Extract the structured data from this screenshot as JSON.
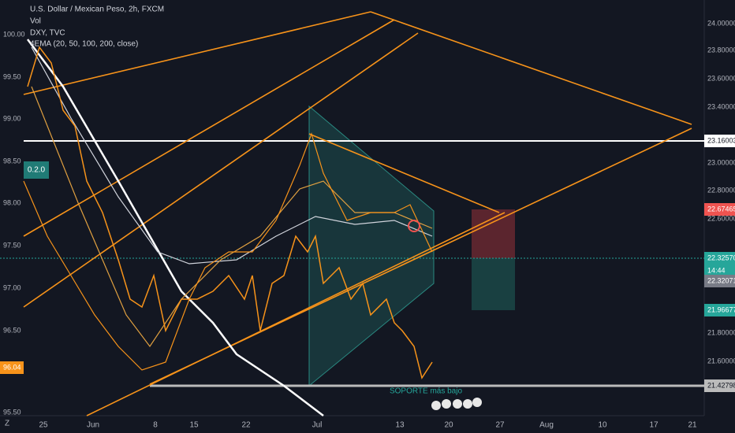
{
  "header": {
    "symbol": "U.S. Dollar / Mexican Peso, 2h, FXCM",
    "volume": "Vol",
    "compare": "DXY, TVC",
    "indicator": "4EMA (20, 50, 100, 200, close)"
  },
  "left_axis": [
    "100.00",
    "99.50",
    "99.00",
    "98.50",
    "98.00",
    "97.50",
    "97.00",
    "96.50",
    "96.04",
    "95.50"
  ],
  "right_axis": [
    "24.00000",
    "23.80000",
    "23.60000",
    "23.40000",
    "23.16003",
    "23.00000",
    "22.80000",
    "22.67465",
    "22.60000",
    "22.32570",
    "14:44",
    "22.32071",
    "21.96677",
    "21.80000",
    "21.60000",
    "21.42798"
  ],
  "time_axis": [
    "25",
    "Jun",
    "8",
    "15",
    "22",
    "Jul",
    "13",
    "20",
    "27",
    "Aug",
    "10",
    "17",
    "21"
  ],
  "annotation": "SOPORTE más bajo",
  "badge": "0.2.0",
  "corner": "Z"
}
